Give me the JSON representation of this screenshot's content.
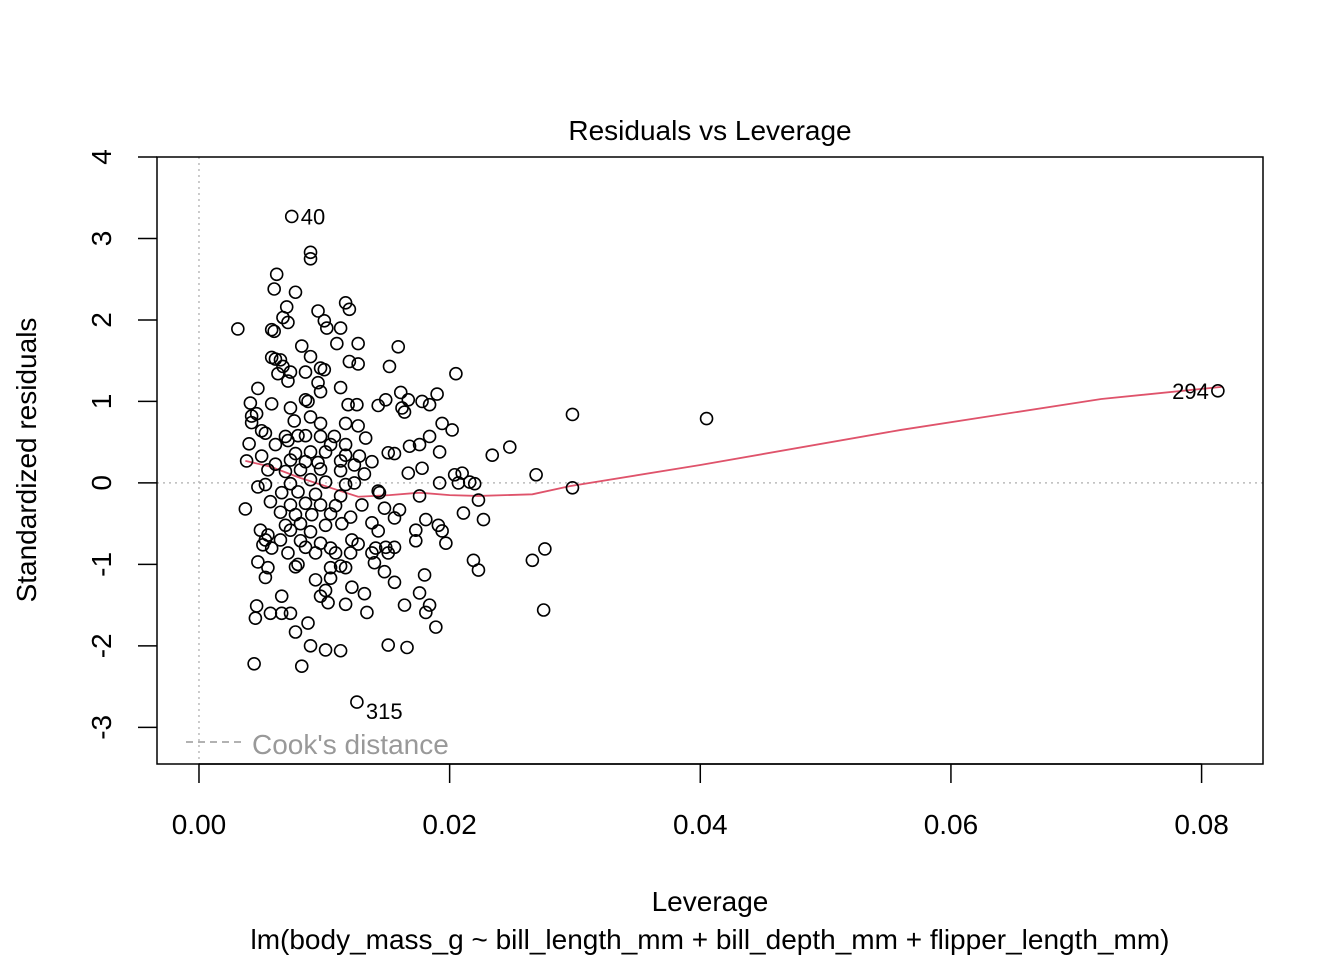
{
  "chart_data": {
    "type": "scatter",
    "title": "Residuals vs Leverage",
    "xlabel": "Leverage",
    "ylabel": "Standardized residuals",
    "subtitle": "lm(body_mass_g ~ bill_length_mm + bill_depth_mm + flipper_length_mm)",
    "xlim": [
      -0.00335,
      0.0849
    ],
    "ylim": [
      -3.45,
      4.0
    ],
    "xticks": [
      0,
      0.02,
      0.04,
      0.06,
      0.08
    ],
    "xtick_labels": [
      "0.00",
      "0.02",
      "0.04",
      "0.06",
      "0.08"
    ],
    "yticks": [
      -3,
      -2,
      -1,
      0,
      1,
      2,
      3,
      4
    ],
    "ytick_labels": [
      "-3",
      "-2",
      "-1",
      "0",
      "1",
      "2",
      "3",
      "4"
    ],
    "legend": {
      "label": "Cook's distance",
      "placement": "bottom-left",
      "color": "#999999"
    },
    "reference_lines": {
      "x": 0,
      "y": 0,
      "color": "#bbbbbb",
      "style": "dotted"
    },
    "point_color": "#000000",
    "smooth_color": "#df536b",
    "labeled_points": [
      {
        "label": "40",
        "x": 0.0074,
        "y": 3.27
      },
      {
        "label": "294",
        "x": 0.0813,
        "y": 1.13
      },
      {
        "label": "315",
        "x": 0.0126,
        "y": -2.69
      }
    ],
    "smooth": [
      [
        0.0037,
        0.27
      ],
      [
        0.0057,
        0.2
      ],
      [
        0.0081,
        0.06
      ],
      [
        0.0105,
        -0.06
      ],
      [
        0.0127,
        -0.17
      ],
      [
        0.0152,
        -0.15
      ],
      [
        0.0176,
        -0.12
      ],
      [
        0.02,
        -0.15
      ],
      [
        0.0223,
        -0.16
      ],
      [
        0.0266,
        -0.14
      ],
      [
        0.0296,
        -0.04
      ],
      [
        0.04,
        0.22
      ],
      [
        0.056,
        0.65
      ],
      [
        0.072,
        1.03
      ],
      [
        0.0817,
        1.18
      ]
    ],
    "points": [
      [
        0.0074,
        3.27
      ],
      [
        0.0089,
        2.83
      ],
      [
        0.0089,
        2.75
      ],
      [
        0.0062,
        2.56
      ],
      [
        0.006,
        2.38
      ],
      [
        0.0077,
        2.34
      ],
      [
        0.007,
        2.16
      ],
      [
        0.0117,
        2.21
      ],
      [
        0.012,
        2.13
      ],
      [
        0.0095,
        2.11
      ],
      [
        0.0067,
        2.03
      ],
      [
        0.01,
        1.99
      ],
      [
        0.0031,
        1.89
      ],
      [
        0.0058,
        1.88
      ],
      [
        0.006,
        1.86
      ],
      [
        0.0071,
        1.97
      ],
      [
        0.0102,
        1.9
      ],
      [
        0.0113,
        1.9
      ],
      [
        0.0082,
        1.68
      ],
      [
        0.0127,
        1.71
      ],
      [
        0.0159,
        1.67
      ],
      [
        0.011,
        1.71
      ],
      [
        0.0058,
        1.54
      ],
      [
        0.0061,
        1.52
      ],
      [
        0.0065,
        1.51
      ],
      [
        0.0089,
        1.55
      ],
      [
        0.012,
        1.49
      ],
      [
        0.0127,
        1.46
      ],
      [
        0.0205,
        1.34
      ],
      [
        0.0067,
        1.43
      ],
      [
        0.0073,
        1.36
      ],
      [
        0.0063,
        1.34
      ],
      [
        0.0085,
        1.36
      ],
      [
        0.0097,
        1.41
      ],
      [
        0.01,
        1.39
      ],
      [
        0.0152,
        1.43
      ],
      [
        0.0071,
        1.25
      ],
      [
        0.0095,
        1.23
      ],
      [
        0.0047,
        1.16
      ],
      [
        0.0113,
        1.17
      ],
      [
        0.0097,
        1.12
      ],
      [
        0.0161,
        1.11
      ],
      [
        0.019,
        1.09
      ],
      [
        0.0041,
        0.98
      ],
      [
        0.0058,
        0.97
      ],
      [
        0.0085,
        1.02
      ],
      [
        0.0087,
        1.0
      ],
      [
        0.0119,
        0.96
      ],
      [
        0.0126,
        0.96
      ],
      [
        0.0143,
        0.95
      ],
      [
        0.0149,
        1.02
      ],
      [
        0.0167,
        1.02
      ],
      [
        0.0178,
        1.0
      ],
      [
        0.0184,
        0.96
      ],
      [
        0.0162,
        0.92
      ],
      [
        0.0164,
        0.87
      ],
      [
        0.0042,
        0.82
      ],
      [
        0.0046,
        0.85
      ],
      [
        0.0073,
        0.92
      ],
      [
        0.0089,
        0.81
      ],
      [
        0.0298,
        0.84
      ],
      [
        0.0405,
        0.79
      ],
      [
        0.0042,
        0.74
      ],
      [
        0.0076,
        0.76
      ],
      [
        0.0097,
        0.73
      ],
      [
        0.0117,
        0.73
      ],
      [
        0.0127,
        0.7
      ],
      [
        0.0194,
        0.73
      ],
      [
        0.0202,
        0.65
      ],
      [
        0.005,
        0.64
      ],
      [
        0.0053,
        0.61
      ],
      [
        0.0069,
        0.57
      ],
      [
        0.0079,
        0.58
      ],
      [
        0.0085,
        0.58
      ],
      [
        0.0097,
        0.57
      ],
      [
        0.0108,
        0.57
      ],
      [
        0.0133,
        0.55
      ],
      [
        0.0184,
        0.57
      ],
      [
        0.004,
        0.48
      ],
      [
        0.0061,
        0.47
      ],
      [
        0.0071,
        0.52
      ],
      [
        0.0105,
        0.47
      ],
      [
        0.0117,
        0.47
      ],
      [
        0.0168,
        0.45
      ],
      [
        0.0176,
        0.47
      ],
      [
        0.0248,
        0.44
      ],
      [
        0.0192,
        0.38
      ],
      [
        0.005,
        0.33
      ],
      [
        0.0077,
        0.36
      ],
      [
        0.0089,
        0.38
      ],
      [
        0.0101,
        0.38
      ],
      [
        0.0117,
        0.34
      ],
      [
        0.0151,
        0.37
      ],
      [
        0.0156,
        0.36
      ],
      [
        0.0234,
        0.34
      ],
      [
        0.0128,
        0.33
      ],
      [
        0.0038,
        0.27
      ],
      [
        0.0061,
        0.23
      ],
      [
        0.0073,
        0.28
      ],
      [
        0.0085,
        0.26
      ],
      [
        0.0095,
        0.25
      ],
      [
        0.0113,
        0.27
      ],
      [
        0.0124,
        0.22
      ],
      [
        0.0138,
        0.26
      ],
      [
        0.0055,
        0.16
      ],
      [
        0.0069,
        0.14
      ],
      [
        0.0081,
        0.16
      ],
      [
        0.0097,
        0.17
      ],
      [
        0.0113,
        0.15
      ],
      [
        0.0132,
        0.11
      ],
      [
        0.0167,
        0.12
      ],
      [
        0.0178,
        0.18
      ],
      [
        0.0204,
        0.1
      ],
      [
        0.021,
        0.12
      ],
      [
        0.0269,
        0.1
      ],
      [
        0.0053,
        -0.02
      ],
      [
        0.0047,
        -0.05
      ],
      [
        0.0073,
        -0.01
      ],
      [
        0.0089,
        0.04
      ],
      [
        0.0101,
        0.01
      ],
      [
        0.0117,
        -0.02
      ],
      [
        0.0124,
        0.0
      ],
      [
        0.0207,
        0.0
      ],
      [
        0.0216,
        0.01
      ],
      [
        0.022,
        -0.01
      ],
      [
        0.0298,
        -0.06
      ],
      [
        0.0192,
        0.0
      ],
      [
        0.0066,
        -0.12
      ],
      [
        0.0079,
        -0.11
      ],
      [
        0.0093,
        -0.14
      ],
      [
        0.0113,
        -0.16
      ],
      [
        0.0143,
        -0.1
      ],
      [
        0.0144,
        -0.12
      ],
      [
        0.0176,
        -0.16
      ],
      [
        0.0223,
        -0.21
      ],
      [
        0.0057,
        -0.23
      ],
      [
        0.0073,
        -0.27
      ],
      [
        0.0085,
        -0.25
      ],
      [
        0.0097,
        -0.27
      ],
      [
        0.0109,
        -0.28
      ],
      [
        0.013,
        -0.27
      ],
      [
        0.0148,
        -0.31
      ],
      [
        0.016,
        -0.33
      ],
      [
        0.0211,
        -0.37
      ],
      [
        0.0037,
        -0.32
      ],
      [
        0.0065,
        -0.36
      ],
      [
        0.0077,
        -0.39
      ],
      [
        0.009,
        -0.39
      ],
      [
        0.0105,
        -0.38
      ],
      [
        0.0121,
        -0.42
      ],
      [
        0.0156,
        -0.43
      ],
      [
        0.0181,
        -0.45
      ],
      [
        0.0227,
        -0.45
      ],
      [
        0.0069,
        -0.52
      ],
      [
        0.0081,
        -0.5
      ],
      [
        0.0101,
        -0.52
      ],
      [
        0.0114,
        -0.5
      ],
      [
        0.0138,
        -0.49
      ],
      [
        0.0191,
        -0.52
      ],
      [
        0.0194,
        -0.59
      ],
      [
        0.0049,
        -0.58
      ],
      [
        0.0055,
        -0.64
      ],
      [
        0.0073,
        -0.58
      ],
      [
        0.0089,
        -0.6
      ],
      [
        0.0143,
        -0.59
      ],
      [
        0.0173,
        -0.58
      ],
      [
        0.0053,
        -0.7
      ],
      [
        0.0065,
        -0.7
      ],
      [
        0.0081,
        -0.71
      ],
      [
        0.0097,
        -0.74
      ],
      [
        0.0122,
        -0.7
      ],
      [
        0.0127,
        -0.75
      ],
      [
        0.0173,
        -0.71
      ],
      [
        0.0197,
        -0.74
      ],
      [
        0.0051,
        -0.76
      ],
      [
        0.0058,
        -0.8
      ],
      [
        0.0085,
        -0.79
      ],
      [
        0.0105,
        -0.8
      ],
      [
        0.0141,
        -0.8
      ],
      [
        0.0149,
        -0.79
      ],
      [
        0.0156,
        -0.79
      ],
      [
        0.0276,
        -0.81
      ],
      [
        0.0071,
        -0.86
      ],
      [
        0.0093,
        -0.86
      ],
      [
        0.0109,
        -0.86
      ],
      [
        0.0121,
        -0.86
      ],
      [
        0.0138,
        -0.86
      ],
      [
        0.0151,
        -0.86
      ],
      [
        0.0047,
        -0.97
      ],
      [
        0.0079,
        -1.0
      ],
      [
        0.0113,
        -1.02
      ],
      [
        0.014,
        -0.98
      ],
      [
        0.0219,
        -0.95
      ],
      [
        0.0266,
        -0.95
      ],
      [
        0.0055,
        -1.04
      ],
      [
        0.0077,
        -1.03
      ],
      [
        0.0105,
        -1.04
      ],
      [
        0.0117,
        -1.04
      ],
      [
        0.0148,
        -1.09
      ],
      [
        0.0223,
        -1.07
      ],
      [
        0.0053,
        -1.16
      ],
      [
        0.0105,
        -1.17
      ],
      [
        0.018,
        -1.13
      ],
      [
        0.0093,
        -1.19
      ],
      [
        0.0122,
        -1.28
      ],
      [
        0.0156,
        -1.22
      ],
      [
        0.0101,
        -1.32
      ],
      [
        0.0066,
        -1.39
      ],
      [
        0.0097,
        -1.39
      ],
      [
        0.0132,
        -1.36
      ],
      [
        0.0176,
        -1.35
      ],
      [
        0.0046,
        -1.51
      ],
      [
        0.0103,
        -1.47
      ],
      [
        0.0117,
        -1.49
      ],
      [
        0.0164,
        -1.5
      ],
      [
        0.0184,
        -1.5
      ],
      [
        0.0045,
        -1.66
      ],
      [
        0.0057,
        -1.6
      ],
      [
        0.0066,
        -1.6
      ],
      [
        0.0073,
        -1.6
      ],
      [
        0.0134,
        -1.59
      ],
      [
        0.0181,
        -1.59
      ],
      [
        0.0275,
        -1.56
      ],
      [
        0.0087,
        -1.72
      ],
      [
        0.0077,
        -1.83
      ],
      [
        0.0189,
        -1.77
      ],
      [
        0.0089,
        -2.0
      ],
      [
        0.0101,
        -2.05
      ],
      [
        0.0113,
        -2.06
      ],
      [
        0.0151,
        -1.99
      ],
      [
        0.0166,
        -2.02
      ],
      [
        0.0044,
        -2.22
      ],
      [
        0.0082,
        -2.25
      ],
      [
        0.0126,
        -2.69
      ],
      [
        0.0813,
        1.13
      ]
    ]
  }
}
